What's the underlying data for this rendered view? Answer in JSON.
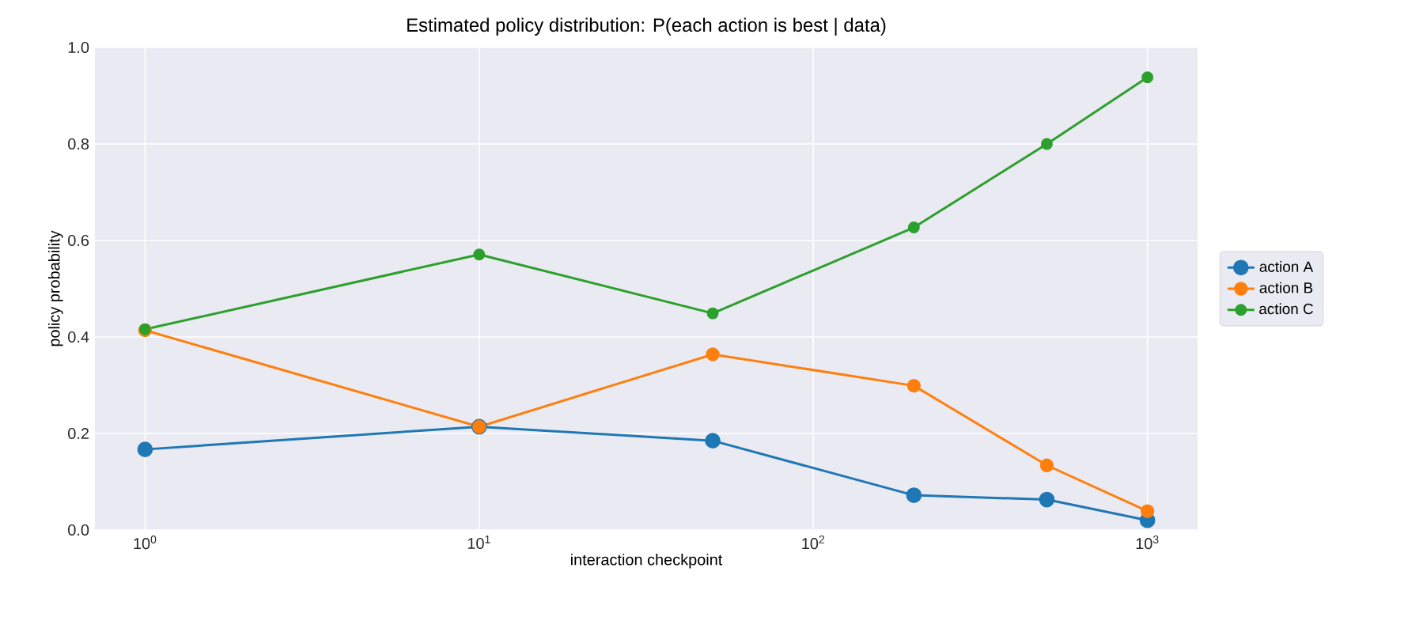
{
  "chart_data": {
    "type": "line",
    "title": "Estimated policy distribution: P(each action is best | data)",
    "xlabel": "interaction checkpoint",
    "ylabel": "policy probability",
    "x": [
      1,
      10,
      50,
      200,
      500,
      1000
    ],
    "series": [
      {
        "name": "action A",
        "color": "#1f77b4",
        "values": [
          0.167,
          0.214,
          0.185,
          0.072,
          0.063,
          0.02
        ]
      },
      {
        "name": "action B",
        "color": "#ff7f0e",
        "values": [
          0.414,
          0.214,
          0.364,
          0.299,
          0.134,
          0.039
        ]
      },
      {
        "name": "action C",
        "color": "#2ca02c",
        "values": [
          0.416,
          0.571,
          0.449,
          0.627,
          0.8,
          0.938
        ]
      }
    ],
    "log": "x",
    "xlim": [
      0.708,
      1413
    ],
    "ylim": [
      0,
      1
    ],
    "xticks": [
      {
        "value": 1,
        "label": "10$^{0}$"
      },
      {
        "value": 10,
        "label": "10$^{1}$"
      },
      {
        "value": 100,
        "label": "10$^{2}$"
      },
      {
        "value": 1000,
        "label": "10$^{3}$"
      }
    ],
    "yticks": [
      {
        "value": 0,
        "label": "0.0"
      },
      {
        "value": 0.2,
        "label": "0.2"
      },
      {
        "value": 0.4,
        "label": "0.4"
      },
      {
        "value": 0.6,
        "label": "0.6"
      },
      {
        "value": 0.8,
        "label": "0.8"
      },
      {
        "value": 1,
        "label": "1.0"
      }
    ],
    "grid": true,
    "legend": "right",
    "marker": "circle",
    "line_style": "solid"
  }
}
